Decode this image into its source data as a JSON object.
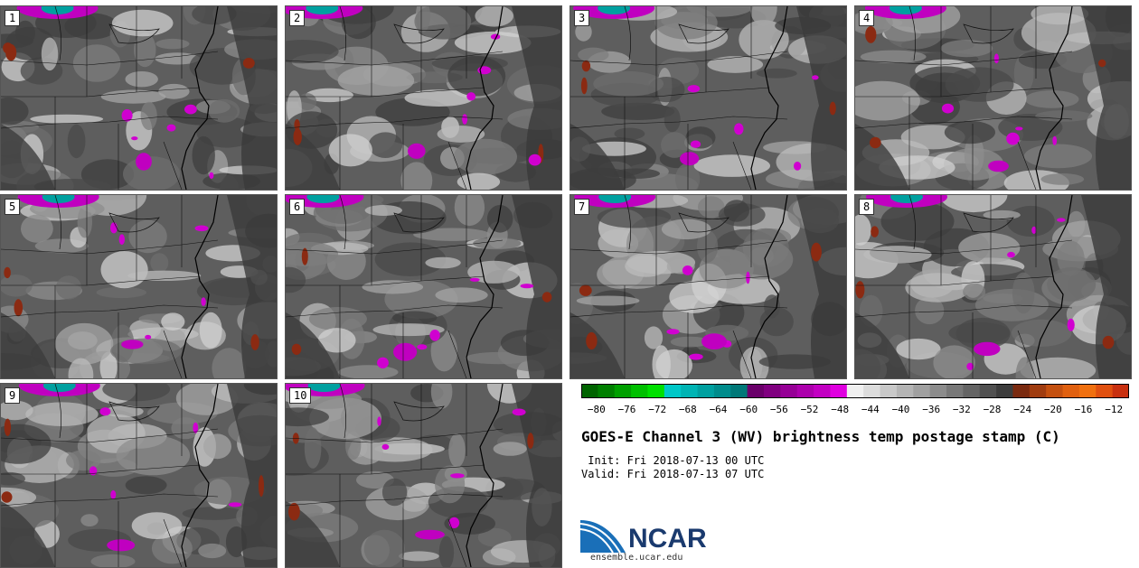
{
  "panels": [
    {
      "label": "1"
    },
    {
      "label": "2"
    },
    {
      "label": "3"
    },
    {
      "label": "4"
    },
    {
      "label": "5"
    },
    {
      "label": "6"
    },
    {
      "label": "7"
    },
    {
      "label": "8"
    },
    {
      "label": "9"
    },
    {
      "label": "10"
    }
  ],
  "colorbar": {
    "colors": [
      "#006400",
      "#007f00",
      "#00a000",
      "#00c000",
      "#00e000",
      "#00c8c8",
      "#00b4b4",
      "#00a0a0",
      "#008c8c",
      "#007878",
      "#6a006a",
      "#800080",
      "#960096",
      "#ac00ac",
      "#c200c2",
      "#e000e0",
      "#f0f0f0",
      "#dcdcdc",
      "#c8c8c8",
      "#b4b4b4",
      "#a0a0a0",
      "#8c8c8c",
      "#787878",
      "#646464",
      "#505050",
      "#3c3c3c",
      "#7a2a10",
      "#a03c10",
      "#c45010",
      "#e06010",
      "#f07010",
      "#e05010",
      "#c83010"
    ],
    "ticks": [
      "-80",
      "-76",
      "-72",
      "-68",
      "-64",
      "-60",
      "-56",
      "-52",
      "-48",
      "-44",
      "-40",
      "-36",
      "-32",
      "-28",
      "-24",
      "-20",
      "-16",
      "-12"
    ],
    "range": [
      -82,
      -10
    ]
  },
  "title": "GOES-E Channel 3 (WV) brightness temp postage stamp (C)",
  "init_line": " Init: Fri 2018-07-13 00 UTC",
  "valid_line": "Valid: Fri 2018-07-13 07 UTC",
  "logo": {
    "text": "NCAR",
    "url": "ensemble.ucar.edu"
  }
}
